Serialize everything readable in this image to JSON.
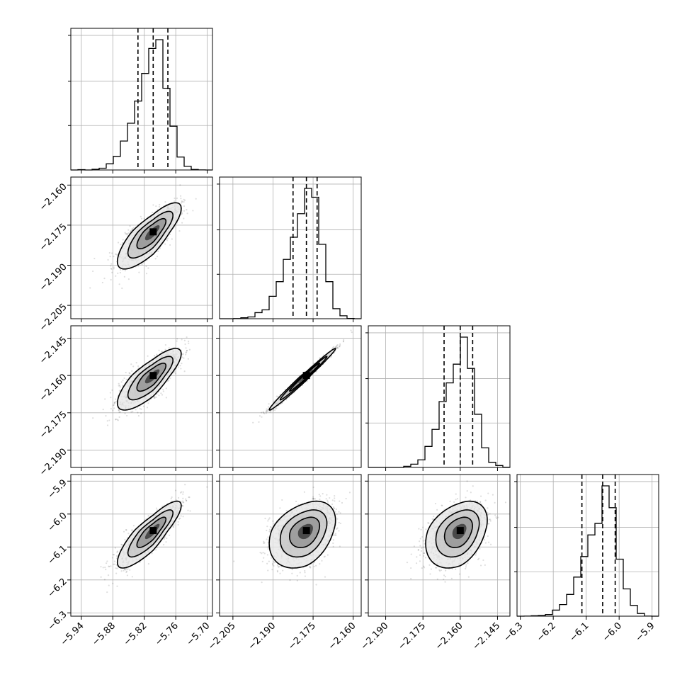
{
  "chart_data": {
    "type": "corner",
    "title": "",
    "params": [
      {
        "name": "",
        "range": [
          -5.96,
          -5.69
        ],
        "ticks": [
          -5.94,
          -5.88,
          -5.82,
          -5.76,
          -5.7
        ],
        "tick_labels": [
          "−5.94",
          "−5.88",
          "−5.82",
          "−5.76",
          "−5.70"
        ],
        "quantiles": [
          -5.832,
          -5.803,
          -5.775
        ],
        "mean": -5.803,
        "sd": 0.027
      },
      {
        "name": "",
        "range": [
          -2.21,
          -2.157
        ],
        "ticks": [
          -2.205,
          -2.19,
          -2.175,
          -2.16
        ],
        "tick_labels": [
          "−2.205",
          "−2.190",
          "−2.175",
          "−2.160"
        ],
        "quantiles": [
          -2.1825,
          -2.1775,
          -2.1735
        ],
        "mean": -2.1775,
        "sd": 0.0055
      },
      {
        "name": "",
        "range": [
          -2.197,
          -2.14
        ],
        "ticks": [
          -2.19,
          -2.175,
          -2.16,
          -2.145
        ],
        "tick_labels": [
          "−2.190",
          "−2.175",
          "−2.160",
          "−2.145"
        ],
        "quantiles": [
          -2.1665,
          -2.16,
          -2.155
        ],
        "mean": -2.16,
        "sd": 0.0055
      },
      {
        "name": "",
        "range": [
          -6.31,
          -5.88
        ],
        "ticks": [
          -6.3,
          -6.2,
          -6.1,
          -6.0,
          -5.9
        ],
        "tick_labels": [
          "−6.3",
          "−6.2",
          "−6.1",
          "−6.0",
          "−5.9"
        ],
        "quantiles": [
          -6.113,
          -6.05,
          -6.012
        ],
        "mean": -6.05,
        "sd": 0.045
      }
    ],
    "correlations": [
      [
        1.0,
        0.8,
        0.8,
        0.85
      ],
      [
        0.8,
        1.0,
        0.99,
        0.35
      ],
      [
        0.8,
        0.99,
        1.0,
        0.35
      ],
      [
        0.85,
        0.35,
        0.35,
        1.0
      ]
    ],
    "grid": true,
    "histogram_style": "step",
    "quantile_line_style": "dashed"
  }
}
